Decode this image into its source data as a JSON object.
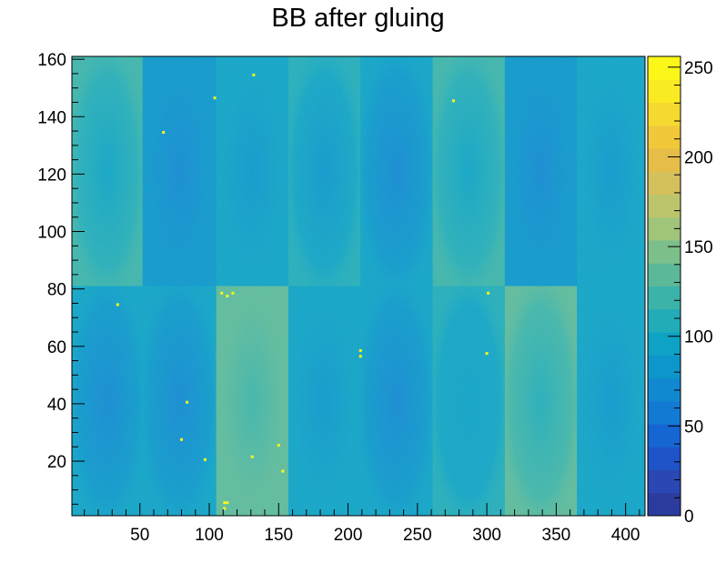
{
  "chart_data": {
    "type": "heatmap",
    "title": "BB after gluing",
    "xlabel": "",
    "ylabel": "",
    "xlim": [
      1,
      414
    ],
    "ylim": [
      1,
      161
    ],
    "x_ticks": [
      "50",
      "100",
      "150",
      "200",
      "250",
      "300",
      "350",
      "400"
    ],
    "y_ticks": [
      "20",
      "40",
      "60",
      "80",
      "100",
      "120",
      "140",
      "160"
    ],
    "colorbar": {
      "range": [
        0,
        256
      ],
      "ticks": [
        "0",
        "50",
        "100",
        "150",
        "200",
        "250"
      ],
      "colormap": [
        "#2b3c9e",
        "#2a47b4",
        "#1f54c8",
        "#1565d2",
        "#137ad3",
        "#1189d0",
        "#0c96ca",
        "#0ea2c5",
        "#22acb8",
        "#3cb3a9",
        "#5bb99a",
        "#7dbf8a",
        "#9fc47a",
        "#bdc56c",
        "#d4c05d",
        "#e6bd48",
        "#f1c83a",
        "#f6d930",
        "#f9ea23",
        "#fbf719"
      ]
    },
    "regions": [
      {
        "x": [
          1,
          52
        ],
        "y": [
          81,
          161
        ],
        "value": 112
      },
      {
        "x": [
          52,
          105
        ],
        "y": [
          81,
          161
        ],
        "value": 78
      },
      {
        "x": [
          105,
          157
        ],
        "y": [
          81,
          161
        ],
        "value": 90
      },
      {
        "x": [
          157,
          209
        ],
        "y": [
          81,
          161
        ],
        "value": 95
      },
      {
        "x": [
          209,
          261
        ],
        "y": [
          81,
          161
        ],
        "value": 85
      },
      {
        "x": [
          261,
          313
        ],
        "y": [
          81,
          161
        ],
        "value": 112
      },
      {
        "x": [
          313,
          365
        ],
        "y": [
          81,
          161
        ],
        "value": 78
      },
      {
        "x": [
          365,
          414
        ],
        "y": [
          81,
          161
        ],
        "value": 90
      },
      {
        "x": [
          1,
          52
        ],
        "y": [
          1,
          81
        ],
        "value": 84
      },
      {
        "x": [
          52,
          105
        ],
        "y": [
          1,
          81
        ],
        "value": 86
      },
      {
        "x": [
          105,
          157
        ],
        "y": [
          1,
          81
        ],
        "value": 128
      },
      {
        "x": [
          157,
          209
        ],
        "y": [
          1,
          81
        ],
        "value": 92
      },
      {
        "x": [
          209,
          261
        ],
        "y": [
          1,
          81
        ],
        "value": 80
      },
      {
        "x": [
          261,
          313
        ],
        "y": [
          1,
          81
        ],
        "value": 102
      },
      {
        "x": [
          313,
          365
        ],
        "y": [
          1,
          81
        ],
        "value": 122
      },
      {
        "x": [
          365,
          414
        ],
        "y": [
          1,
          81
        ],
        "value": 92
      }
    ]
  }
}
